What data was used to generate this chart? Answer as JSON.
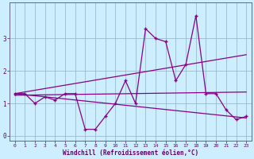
{
  "xlabel": "Windchill (Refroidissement éolien,°C)",
  "bg_color": "#cceeff",
  "line_color": "#880088",
  "grid_color": "#99bbcc",
  "xlim": [
    -0.5,
    23.5
  ],
  "ylim": [
    -0.15,
    4.1
  ],
  "yticks": [
    0,
    1,
    2,
    3
  ],
  "xticks": [
    0,
    1,
    2,
    3,
    4,
    5,
    6,
    7,
    8,
    9,
    10,
    11,
    12,
    13,
    14,
    15,
    16,
    17,
    18,
    19,
    20,
    21,
    22,
    23
  ],
  "series1": [
    1.3,
    1.3,
    1.0,
    1.2,
    1.1,
    1.3,
    1.3,
    0.2,
    0.2,
    0.6,
    1.0,
    1.7,
    1.0,
    3.3,
    3.0,
    2.9,
    1.7,
    2.2,
    3.7,
    1.3,
    1.3,
    0.8,
    0.5,
    0.6
  ],
  "regline_up": [
    [
      0,
      1.3
    ],
    [
      23,
      2.5
    ]
  ],
  "regline_down": [
    [
      0,
      1.3
    ],
    [
      23,
      0.55
    ]
  ],
  "regline_flat": [
    [
      0,
      1.25
    ],
    [
      23,
      1.35
    ]
  ]
}
